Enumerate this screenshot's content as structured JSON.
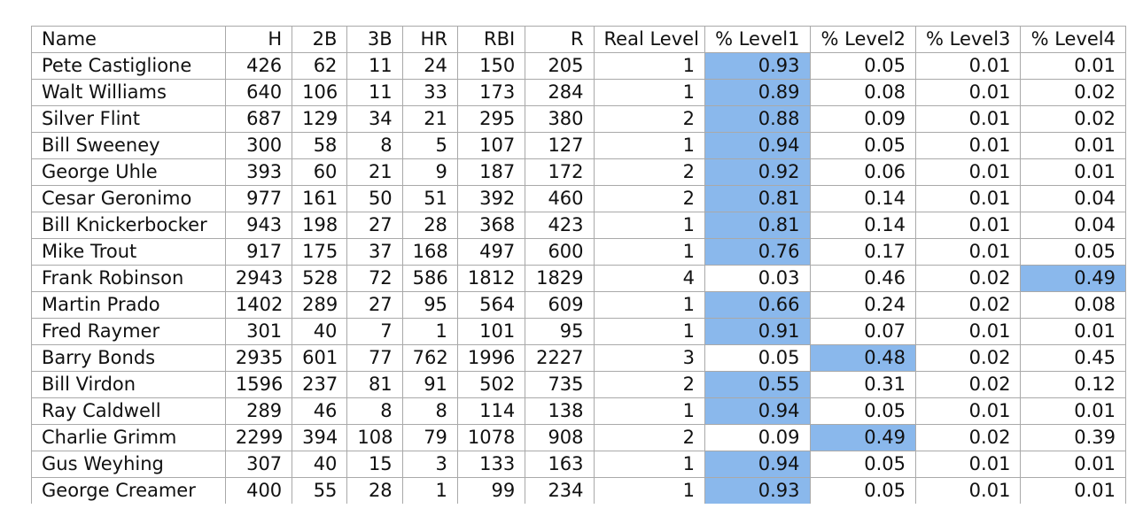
{
  "highlight_color": "#8ab8ec",
  "columns": [
    "Name",
    "H",
    "2B",
    "3B",
    "HR",
    "RBI",
    "R",
    "Real Level",
    "% Level1",
    "% Level2",
    "% Level3",
    "% Level4"
  ],
  "rows": [
    {
      "name": "Pete Castiglione",
      "h": "426",
      "b2": "62",
      "b3": "11",
      "hr": "24",
      "rbi": "150",
      "r": "205",
      "level": "1",
      "p1": "0.93",
      "p2": "0.05",
      "p3": "0.01",
      "p4": "0.01",
      "highlight": "p1"
    },
    {
      "name": "Walt Williams",
      "h": "640",
      "b2": "106",
      "b3": "11",
      "hr": "33",
      "rbi": "173",
      "r": "284",
      "level": "1",
      "p1": "0.89",
      "p2": "0.08",
      "p3": "0.01",
      "p4": "0.02",
      "highlight": "p1"
    },
    {
      "name": "Silver Flint",
      "h": "687",
      "b2": "129",
      "b3": "34",
      "hr": "21",
      "rbi": "295",
      "r": "380",
      "level": "2",
      "p1": "0.88",
      "p2": "0.09",
      "p3": "0.01",
      "p4": "0.02",
      "highlight": "p1"
    },
    {
      "name": "Bill Sweeney",
      "h": "300",
      "b2": "58",
      "b3": "8",
      "hr": "5",
      "rbi": "107",
      "r": "127",
      "level": "1",
      "p1": "0.94",
      "p2": "0.05",
      "p3": "0.01",
      "p4": "0.01",
      "highlight": "p1"
    },
    {
      "name": "George Uhle",
      "h": "393",
      "b2": "60",
      "b3": "21",
      "hr": "9",
      "rbi": "187",
      "r": "172",
      "level": "2",
      "p1": "0.92",
      "p2": "0.06",
      "p3": "0.01",
      "p4": "0.01",
      "highlight": "p1"
    },
    {
      "name": "Cesar Geronimo",
      "h": "977",
      "b2": "161",
      "b3": "50",
      "hr": "51",
      "rbi": "392",
      "r": "460",
      "level": "2",
      "p1": "0.81",
      "p2": "0.14",
      "p3": "0.01",
      "p4": "0.04",
      "highlight": "p1"
    },
    {
      "name": "Bill Knickerbocker",
      "h": "943",
      "b2": "198",
      "b3": "27",
      "hr": "28",
      "rbi": "368",
      "r": "423",
      "level": "1",
      "p1": "0.81",
      "p2": "0.14",
      "p3": "0.01",
      "p4": "0.04",
      "highlight": "p1"
    },
    {
      "name": "Mike Trout",
      "h": "917",
      "b2": "175",
      "b3": "37",
      "hr": "168",
      "rbi": "497",
      "r": "600",
      "level": "1",
      "p1": "0.76",
      "p2": "0.17",
      "p3": "0.01",
      "p4": "0.05",
      "highlight": "p1"
    },
    {
      "name": "Frank Robinson",
      "h": "2943",
      "b2": "528",
      "b3": "72",
      "hr": "586",
      "rbi": "1812",
      "r": "1829",
      "level": "4",
      "p1": "0.03",
      "p2": "0.46",
      "p3": "0.02",
      "p4": "0.49",
      "highlight": "p4"
    },
    {
      "name": "Martin Prado",
      "h": "1402",
      "b2": "289",
      "b3": "27",
      "hr": "95",
      "rbi": "564",
      "r": "609",
      "level": "1",
      "p1": "0.66",
      "p2": "0.24",
      "p3": "0.02",
      "p4": "0.08",
      "highlight": "p1"
    },
    {
      "name": "Fred Raymer",
      "h": "301",
      "b2": "40",
      "b3": "7",
      "hr": "1",
      "rbi": "101",
      "r": "95",
      "level": "1",
      "p1": "0.91",
      "p2": "0.07",
      "p3": "0.01",
      "p4": "0.01",
      "highlight": "p1"
    },
    {
      "name": "Barry Bonds",
      "h": "2935",
      "b2": "601",
      "b3": "77",
      "hr": "762",
      "rbi": "1996",
      "r": "2227",
      "level": "3",
      "p1": "0.05",
      "p2": "0.48",
      "p3": "0.02",
      "p4": "0.45",
      "highlight": "p2"
    },
    {
      "name": "Bill Virdon",
      "h": "1596",
      "b2": "237",
      "b3": "81",
      "hr": "91",
      "rbi": "502",
      "r": "735",
      "level": "2",
      "p1": "0.55",
      "p2": "0.31",
      "p3": "0.02",
      "p4": "0.12",
      "highlight": "p1"
    },
    {
      "name": "Ray Caldwell",
      "h": "289",
      "b2": "46",
      "b3": "8",
      "hr": "8",
      "rbi": "114",
      "r": "138",
      "level": "1",
      "p1": "0.94",
      "p2": "0.05",
      "p3": "0.01",
      "p4": "0.01",
      "highlight": "p1"
    },
    {
      "name": "Charlie Grimm",
      "h": "2299",
      "b2": "394",
      "b3": "108",
      "hr": "79",
      "rbi": "1078",
      "r": "908",
      "level": "2",
      "p1": "0.09",
      "p2": "0.49",
      "p3": "0.02",
      "p4": "0.39",
      "highlight": "p2"
    },
    {
      "name": "Gus Weyhing",
      "h": "307",
      "b2": "40",
      "b3": "15",
      "hr": "3",
      "rbi": "133",
      "r": "163",
      "level": "1",
      "p1": "0.94",
      "p2": "0.05",
      "p3": "0.01",
      "p4": "0.01",
      "highlight": "p1"
    },
    {
      "name": "George Creamer",
      "h": "400",
      "b2": "55",
      "b3": "28",
      "hr": "1",
      "rbi": "99",
      "r": "234",
      "level": "1",
      "p1": "0.93",
      "p2": "0.05",
      "p3": "0.01",
      "p4": "0.01",
      "highlight": "p1"
    }
  ]
}
